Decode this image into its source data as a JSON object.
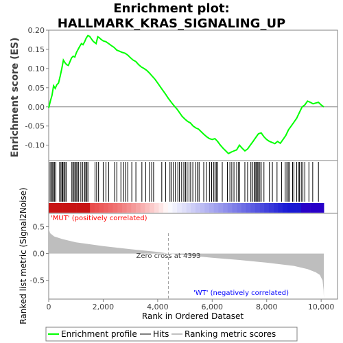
{
  "chart_data": {
    "type": "line",
    "title_line1": "Enrichment plot:",
    "title_line2": "HALLMARK_KRAS_SIGNALING_UP",
    "top_panel": {
      "ylabel": "Enrichment score (ES)",
      "ylim": [
        -0.14,
        0.2
      ],
      "yticks": [
        "0.20",
        "0.15",
        "0.10",
        "0.05",
        "0.00",
        "-0.05",
        "-0.10"
      ],
      "ytick_values": [
        0.2,
        0.15,
        0.1,
        0.05,
        0.0,
        -0.05,
        -0.1
      ],
      "series": [
        {
          "name": "Enrichment profile",
          "color": "#00ff00",
          "x": [
            0,
            60,
            120,
            180,
            240,
            300,
            360,
            420,
            480,
            540,
            600,
            660,
            720,
            780,
            840,
            900,
            960,
            1020,
            1080,
            1140,
            1200,
            1260,
            1320,
            1380,
            1440,
            1500,
            1560,
            1620,
            1680,
            1740,
            1800,
            1860,
            1920,
            2000,
            2100,
            2200,
            2300,
            2400,
            2500,
            2600,
            2700,
            2800,
            2900,
            3000,
            3100,
            3200,
            3300,
            3400,
            3500,
            3600,
            3700,
            3800,
            3900,
            4000,
            4100,
            4200,
            4300,
            4393,
            4500,
            4600,
            4700,
            4800,
            4900,
            5000,
            5100,
            5200,
            5300,
            5400,
            5500,
            5600,
            5700,
            5800,
            5900,
            6000,
            6100,
            6200,
            6300,
            6400,
            6500,
            6600,
            6700,
            6800,
            6900,
            7000,
            7100,
            7200,
            7300,
            7400,
            7500,
            7600,
            7700,
            7800,
            7900,
            8000,
            8100,
            8200,
            8300,
            8400,
            8500,
            8600,
            8700,
            8800,
            8900,
            9000,
            9100,
            9200,
            9300,
            9400,
            9500,
            9600,
            9700,
            9800,
            9900,
            10000,
            10100
          ],
          "y": [
            -0.003,
            0.015,
            0.03,
            0.055,
            0.048,
            0.058,
            0.062,
            0.08,
            0.1,
            0.122,
            0.115,
            0.11,
            0.108,
            0.118,
            0.128,
            0.132,
            0.13,
            0.142,
            0.15,
            0.158,
            0.165,
            0.162,
            0.17,
            0.18,
            0.186,
            0.184,
            0.178,
            0.172,
            0.168,
            0.165,
            0.183,
            0.18,
            0.176,
            0.172,
            0.17,
            0.165,
            0.16,
            0.155,
            0.148,
            0.145,
            0.142,
            0.14,
            0.135,
            0.128,
            0.122,
            0.118,
            0.11,
            0.104,
            0.1,
            0.095,
            0.088,
            0.08,
            0.072,
            0.062,
            0.052,
            0.042,
            0.032,
            0.022,
            0.012,
            0.003,
            -0.005,
            -0.015,
            -0.025,
            -0.032,
            -0.038,
            -0.042,
            -0.05,
            -0.055,
            -0.058,
            -0.065,
            -0.072,
            -0.078,
            -0.083,
            -0.085,
            -0.083,
            -0.09,
            -0.1,
            -0.108,
            -0.115,
            -0.122,
            -0.118,
            -0.115,
            -0.112,
            -0.1,
            -0.108,
            -0.115,
            -0.11,
            -0.1,
            -0.09,
            -0.08,
            -0.07,
            -0.068,
            -0.078,
            -0.085,
            -0.09,
            -0.093,
            -0.096,
            -0.09,
            -0.095,
            -0.085,
            -0.075,
            -0.06,
            -0.05,
            -0.04,
            -0.03,
            -0.015,
            0.0,
            0.005,
            0.015,
            0.012,
            0.008,
            0.01,
            0.012,
            0.005,
            0.0
          ]
        }
      ]
    },
    "hits_panel": {
      "hit_positions": [
        50,
        90,
        130,
        170,
        210,
        260,
        400,
        450,
        490,
        520,
        560,
        600,
        640,
        850,
        890,
        930,
        970,
        1010,
        1060,
        1100,
        1180,
        1250,
        1320,
        1360,
        1400,
        1440,
        1700,
        1760,
        1830,
        2000,
        2100,
        2200,
        2420,
        2500,
        2650,
        2750,
        2820,
        2900,
        3050,
        3200,
        3420,
        3560,
        3700,
        3780,
        3850,
        4150,
        4290,
        4450,
        4510,
        4580,
        4650,
        4740,
        4800,
        4880,
        4960,
        5020,
        5080,
        5150,
        5210,
        5290,
        5400,
        5460,
        5520,
        5690,
        5790,
        5900,
        5980,
        6050,
        6100,
        6150,
        6200,
        6370,
        6560,
        6650,
        6720,
        6800,
        6900,
        6970,
        7000,
        7200,
        7300,
        7420,
        7480,
        7540,
        7580,
        7620,
        7660,
        7700,
        7750,
        7800,
        7900,
        8100,
        8210,
        8380,
        8550,
        8680,
        8740,
        8790,
        8850,
        8950,
        9000,
        9100,
        9160,
        9200,
        9270,
        9330,
        9400,
        9550,
        9690,
        9900
      ]
    },
    "bottom_panel": {
      "ylabel": "Ranked list metric (Signal2Noise)",
      "ylim": [
        -0.85,
        0.75
      ],
      "yticks": [
        "0.5",
        "0.0",
        "-0.5"
      ],
      "ytick_values": [
        0.5,
        0.0,
        -0.5
      ],
      "metric_x": [
        0,
        50,
        200,
        500,
        1000,
        2000,
        3000,
        4000,
        4393,
        5000,
        6000,
        7000,
        8000,
        9000,
        9500,
        9800,
        9950,
        10050,
        10090,
        10100
      ],
      "metric_y": [
        0.47,
        0.38,
        0.32,
        0.27,
        0.21,
        0.14,
        0.08,
        0.03,
        0.0,
        -0.03,
        -0.08,
        -0.12,
        -0.17,
        -0.23,
        -0.29,
        -0.35,
        -0.4,
        -0.5,
        -0.68,
        -0.83
      ],
      "zero_cross_label": "Zero cross at 4393",
      "zero_cross_x": 4393,
      "pos_label": "'MUT' (positively correlated)",
      "neg_label": "'WT' (negatively correlated)"
    },
    "xaxis": {
      "xlabel": "Rank in Ordered Dataset",
      "xlim": [
        0,
        10600
      ],
      "xticks": [
        "0",
        "2,000",
        "4,000",
        "6,000",
        "8,000",
        "10,000"
      ],
      "xtick_values": [
        0,
        2000,
        4000,
        6000,
        8000,
        10000
      ],
      "n_genes": 10100
    },
    "legend": {
      "items": [
        {
          "label": "Enrichment profile",
          "color": "#00ff00"
        },
        {
          "label": "Hits",
          "color": "#000000"
        },
        {
          "label": "Ranking metric scores",
          "color": "#c0c0c0"
        }
      ]
    },
    "colors": {
      "profile": "#00ff00",
      "metric_fill": "#bebebe",
      "pos_label": "#ff0000",
      "neg_label": "#0000ff",
      "grid_zero": "#808080"
    }
  }
}
